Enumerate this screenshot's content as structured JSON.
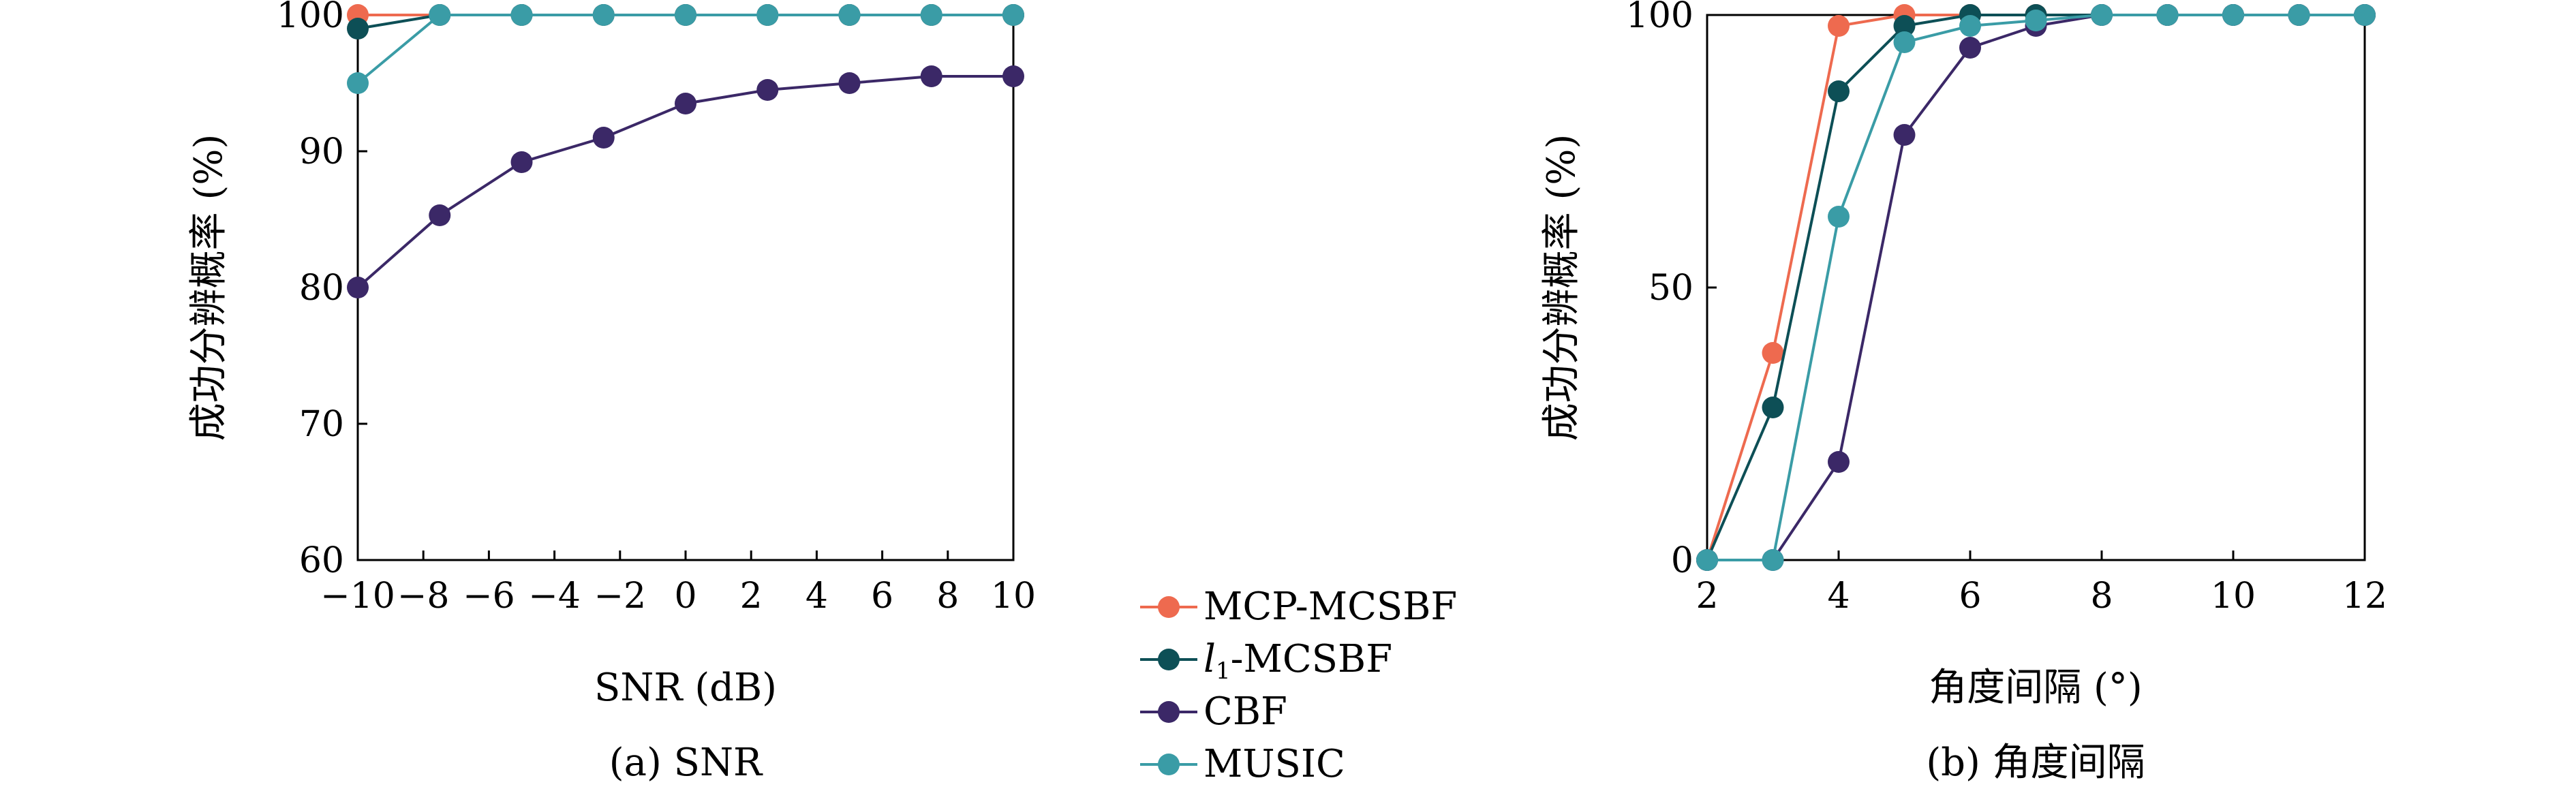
{
  "colors": {
    "MCP-MCSBF": "#ee6a4f",
    "l1-MCSBF": "#0d4f56",
    "CBF": "#3b2867",
    "MUSIC": "#3a9ca6"
  },
  "legend": {
    "placement": "bottom-center",
    "items": [
      {
        "key": "MCP-MCSBF",
        "label": "MCP-MCSBF"
      },
      {
        "key": "l1-MCSBF",
        "label_main": "l",
        "label_sub": "1",
        "label_rest": "-MCSBF"
      },
      {
        "key": "CBF",
        "label": "CBF"
      },
      {
        "key": "MUSIC",
        "label": "MUSIC"
      }
    ]
  },
  "chart_data": [
    {
      "type": "line",
      "caption": "(a) SNR",
      "xlabel": "SNR (dB)",
      "ylabel": "成功分辨概率 (%)",
      "xlim": [
        -10,
        10
      ],
      "ylim": [
        60,
        100
      ],
      "xticks": [
        -10,
        -8,
        -6,
        -4,
        -2,
        0,
        2,
        4,
        6,
        8,
        10
      ],
      "xtick_labels": [
        "−10",
        "−8",
        "−6",
        "−4",
        "−2",
        "0",
        "2",
        "4",
        "6",
        "8",
        "10"
      ],
      "yticks": [
        60,
        70,
        80,
        90,
        100
      ],
      "ytick_labels": [
        "60",
        "70",
        "80",
        "90",
        "100"
      ],
      "x": [
        -10,
        -7.5,
        -5,
        -2.5,
        0,
        2.5,
        5,
        7.5,
        10
      ],
      "series": [
        {
          "name": "MCP-MCSBF",
          "values": [
            100,
            100,
            100,
            100,
            100,
            100,
            100,
            100,
            100
          ]
        },
        {
          "name": "l1-MCSBF",
          "values": [
            99,
            100,
            100,
            100,
            100,
            100,
            100,
            100,
            100
          ]
        },
        {
          "name": "CBF",
          "values": [
            80,
            85.3,
            89.2,
            91,
            93.5,
            94.5,
            95,
            95.5,
            95.5
          ]
        },
        {
          "name": "MUSIC",
          "values": [
            95,
            100,
            100,
            100,
            100,
            100,
            100,
            100,
            100
          ]
        }
      ]
    },
    {
      "type": "line",
      "caption": "(b) 角度间隔",
      "xlabel": "角度间隔 (°)",
      "ylabel": "成功分辨概率 (%)",
      "xlim": [
        2,
        12
      ],
      "ylim": [
        0,
        100
      ],
      "xticks": [
        2,
        4,
        6,
        8,
        10,
        12
      ],
      "xtick_labels": [
        "2",
        "4",
        "6",
        "8",
        "10",
        "12"
      ],
      "yticks": [
        0,
        50,
        100
      ],
      "ytick_labels": [
        "0",
        "50",
        "100"
      ],
      "x": [
        2,
        3,
        4,
        5,
        6,
        7,
        8,
        9,
        10,
        11,
        12
      ],
      "series": [
        {
          "name": "MCP-MCSBF",
          "values": [
            0,
            38,
            98,
            100,
            100,
            100,
            100,
            100,
            100,
            100,
            100
          ]
        },
        {
          "name": "l1-MCSBF",
          "values": [
            0,
            28,
            86,
            98,
            100,
            100,
            100,
            100,
            100,
            100,
            100
          ]
        },
        {
          "name": "CBF",
          "values": [
            0,
            0,
            18,
            78,
            94,
            98,
            100,
            100,
            100,
            100,
            100
          ]
        },
        {
          "name": "MUSIC",
          "values": [
            0,
            0,
            63,
            95,
            98,
            99,
            100,
            100,
            100,
            100,
            100
          ]
        }
      ]
    }
  ]
}
